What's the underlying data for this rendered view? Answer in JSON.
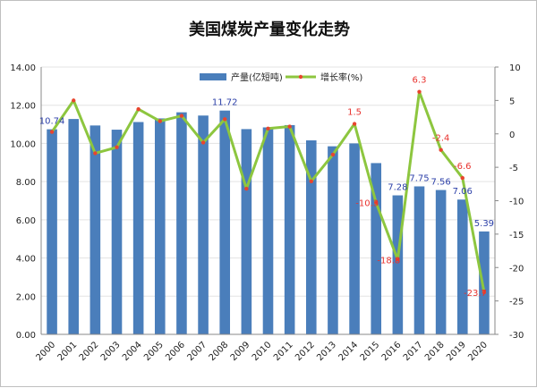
{
  "chart_data": {
    "type": "bar",
    "title": "美国煤炭产量变化走势",
    "categories": [
      "2000",
      "2001",
      "2002",
      "2003",
      "2004",
      "2005",
      "2006",
      "2007",
      "2008",
      "2009",
      "2010",
      "2011",
      "2012",
      "2013",
      "2014",
      "2015",
      "2016",
      "2017",
      "2018",
      "2019",
      "2020"
    ],
    "series": [
      {
        "name": "产量(亿短吨)",
        "type": "bar",
        "axis": "left",
        "color": "#4a7ebb",
        "values": [
          10.74,
          11.28,
          10.94,
          10.72,
          11.12,
          11.31,
          11.63,
          11.46,
          11.72,
          10.75,
          10.84,
          10.96,
          10.16,
          9.85,
          10.0,
          8.97,
          7.28,
          7.75,
          7.56,
          7.06,
          5.39
        ]
      },
      {
        "name": "增长率(%)",
        "type": "line",
        "axis": "right",
        "color": "#8dc63f",
        "marker_color": "#e8452e",
        "values": [
          0.3,
          5.0,
          -2.9,
          -2.0,
          3.7,
          1.9,
          2.7,
          -1.3,
          2.2,
          -8.2,
          0.8,
          1.1,
          -7.1,
          -3.1,
          1.5,
          -10.3,
          -18.8,
          6.3,
          -2.4,
          -6.6,
          -23.7
        ]
      }
    ],
    "data_labels": {
      "bar": {
        "2000": "10.74",
        "2008": "11.72",
        "2016": "7.28",
        "2017": "7.75",
        "2018": "7.56",
        "2019": "7.06",
        "2020": "5.39"
      },
      "line": {
        "2014": "1.5",
        "2015": "-10.3",
        "2016": "-18.8",
        "2017": "6.3",
        "2018": "-2.4",
        "2019": "-6.6",
        "2020": "-23.7"
      }
    },
    "y_left": {
      "min": 0,
      "max": 14,
      "step": 2,
      "tick_labels": [
        "0.00",
        "2.00",
        "4.00",
        "6.00",
        "8.00",
        "10.00",
        "12.00",
        "14.00"
      ]
    },
    "y_right": {
      "min": -30,
      "max": 10,
      "step": 5,
      "tick_labels": [
        "-30",
        "-25",
        "-20",
        "-15",
        "-10",
        "-5",
        "0",
        "5",
        "10"
      ]
    },
    "legend_position": "top"
  }
}
